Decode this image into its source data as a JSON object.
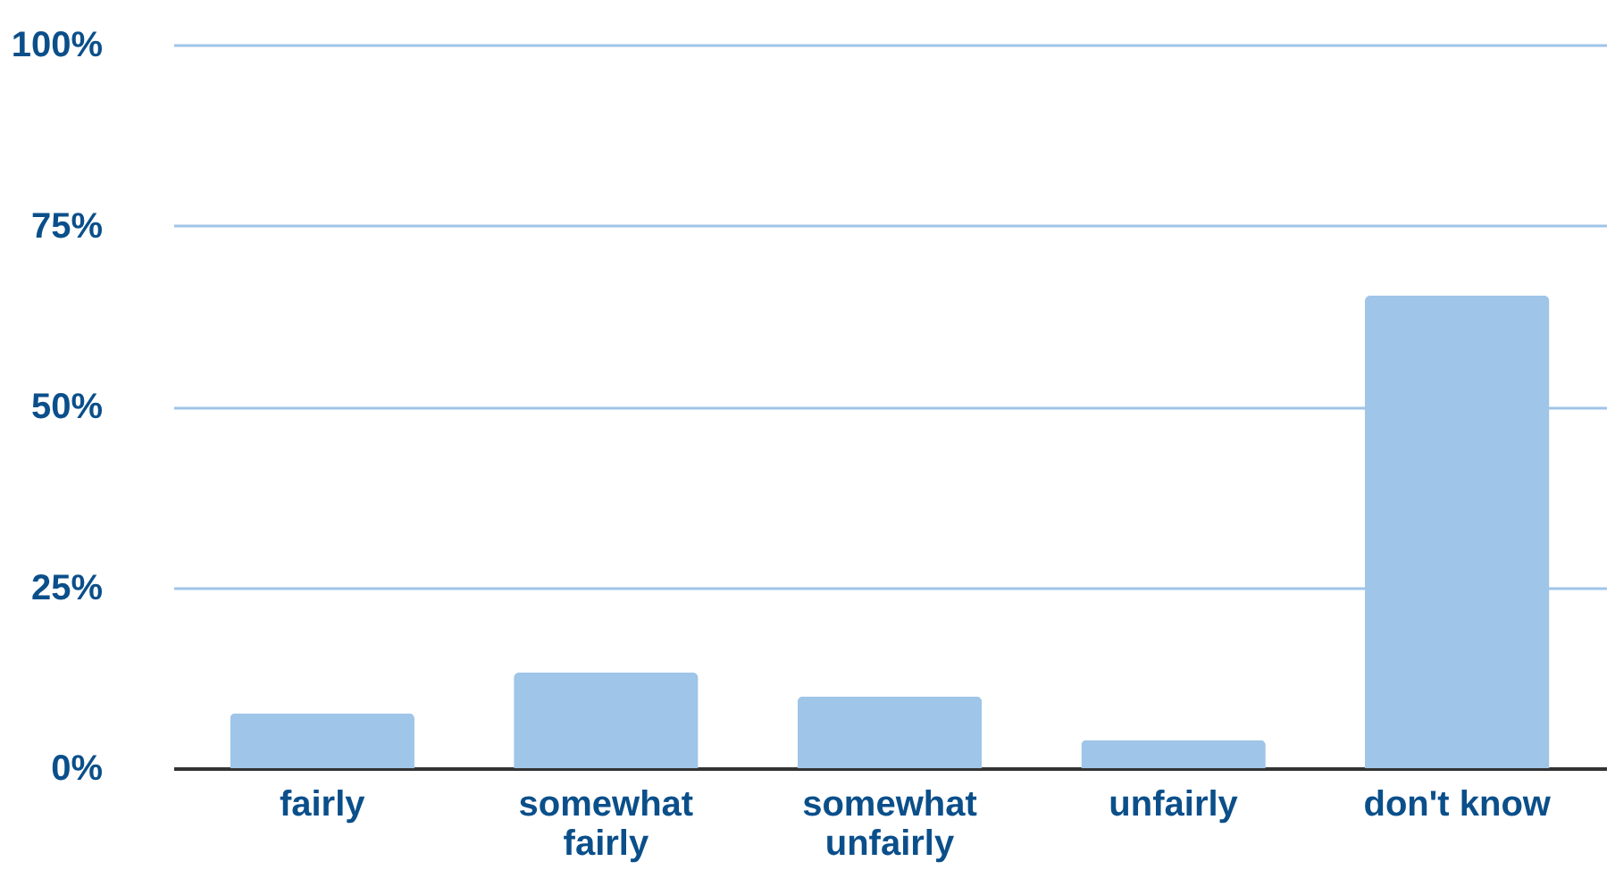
{
  "chart_data": {
    "type": "bar",
    "categories": [
      "fairly",
      "somewhat fairly",
      "somewhat unfairly",
      "unfairly",
      "don't know"
    ],
    "values": [
      7.6,
      13.2,
      9.9,
      3.9,
      65.3
    ],
    "color": "#9fc5e8",
    "ylim": [
      0,
      100
    ],
    "yticks": [
      {
        "value": 0,
        "label": "0%"
      },
      {
        "value": 25,
        "label": "25%"
      },
      {
        "value": 50,
        "label": "50%"
      },
      {
        "value": 75,
        "label": "75%"
      },
      {
        "value": 100,
        "label": "100%"
      }
    ],
    "grid": "y"
  }
}
